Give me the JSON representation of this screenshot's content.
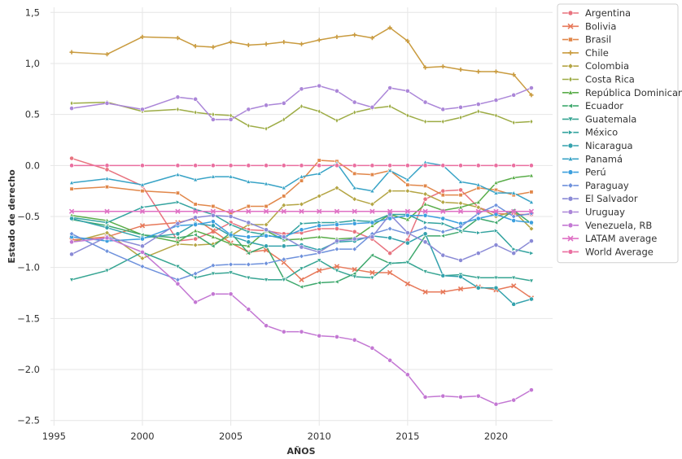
{
  "chart_data": {
    "type": "line",
    "xlabel": "AÑOS",
    "ylabel": "Estado de derecho",
    "xlim": [
      1994.8,
      2023.2
    ],
    "ylim": [
      -2.55,
      1.55
    ],
    "xticks": [
      1995,
      2000,
      2005,
      2010,
      2015,
      2020
    ],
    "yticks": [
      {
        "value": 1.5,
        "label": "1,5"
      },
      {
        "value": 1.0,
        "label": "1,0"
      },
      {
        "value": 0.5,
        "label": "0.5"
      },
      {
        "value": 0.0,
        "label": "0.0"
      },
      {
        "value": -0.5,
        "label": "−0.5"
      },
      {
        "value": -1.0,
        "label": "−1.0"
      },
      {
        "value": -1.5,
        "label": "−1.5"
      },
      {
        "value": -2.0,
        "label": "−2.0"
      },
      {
        "value": -2.5,
        "label": "−2.5"
      }
    ],
    "grid": true,
    "legend_position": "right outside top",
    "years": [
      1996,
      1998,
      2000,
      2002,
      2003,
      2004,
      2005,
      2006,
      2007,
      2008,
      2009,
      2010,
      2011,
      2012,
      2013,
      2014,
      2015,
      2016,
      2017,
      2018,
      2019,
      2020,
      2021,
      2022
    ],
    "series": [
      {
        "name": "Argentina",
        "color": "#e8737f",
        "marker": "circle",
        "values": [
          0.07,
          -0.04,
          -0.2,
          -0.74,
          -0.72,
          -0.65,
          -0.56,
          -0.63,
          -0.64,
          -0.67,
          -0.66,
          -0.62,
          -0.62,
          -0.65,
          -0.72,
          -0.86,
          -0.73,
          -0.33,
          -0.25,
          -0.24,
          -0.41,
          -0.47,
          -0.48,
          -0.48
        ]
      },
      {
        "name": "Bolivia",
        "color": "#e7795a",
        "marker": "x",
        "values": [
          -0.73,
          -0.7,
          -0.59,
          -0.56,
          -0.52,
          -0.64,
          -0.76,
          -0.85,
          -0.83,
          -0.95,
          -1.12,
          -1.03,
          -0.99,
          -1.02,
          -1.05,
          -1.05,
          -1.16,
          -1.24,
          -1.24,
          -1.21,
          -1.19,
          -1.22,
          -1.18,
          -1.3
        ]
      },
      {
        "name": "Brasil",
        "color": "#e1874a",
        "marker": "square",
        "values": [
          -0.23,
          -0.21,
          -0.25,
          -0.27,
          -0.38,
          -0.4,
          -0.47,
          -0.4,
          -0.4,
          -0.3,
          -0.15,
          0.05,
          0.04,
          -0.08,
          -0.09,
          -0.05,
          -0.19,
          -0.2,
          -0.29,
          -0.29,
          -0.22,
          -0.24,
          -0.29,
          -0.26
        ]
      },
      {
        "name": "Chile",
        "color": "#c99b3f",
        "marker": "plus",
        "values": [
          1.11,
          1.09,
          1.26,
          1.25,
          1.17,
          1.16,
          1.21,
          1.18,
          1.19,
          1.21,
          1.19,
          1.23,
          1.26,
          1.28,
          1.25,
          1.35,
          1.22,
          0.96,
          0.97,
          0.94,
          0.92,
          0.92,
          0.89,
          0.69
        ]
      },
      {
        "name": "Colombia",
        "color": "#b4a544",
        "marker": "diamond",
        "values": [
          -0.75,
          -0.66,
          -0.91,
          -0.77,
          -0.78,
          -0.77,
          -0.69,
          -0.58,
          -0.58,
          -0.39,
          -0.38,
          -0.3,
          -0.22,
          -0.33,
          -0.38,
          -0.25,
          -0.25,
          -0.28,
          -0.36,
          -0.37,
          -0.41,
          -0.5,
          -0.45,
          -0.62
        ]
      },
      {
        "name": "Costa Rica",
        "color": "#9dac45",
        "marker": "diamond_thin",
        "values": [
          0.61,
          0.62,
          0.53,
          0.55,
          0.52,
          0.5,
          0.49,
          0.39,
          0.36,
          0.45,
          0.58,
          0.53,
          0.44,
          0.52,
          0.56,
          0.58,
          0.49,
          0.43,
          0.43,
          0.47,
          0.53,
          0.49,
          0.42,
          0.43
        ]
      },
      {
        "name": "República Dominicana",
        "color": "#5aad4a",
        "marker": "triangle_up",
        "values": [
          -0.49,
          -0.54,
          -0.68,
          -0.75,
          -0.64,
          -0.7,
          -0.77,
          -0.79,
          -0.64,
          -0.73,
          -0.72,
          -0.7,
          -0.72,
          -0.71,
          -0.59,
          -0.48,
          -0.53,
          -0.38,
          -0.44,
          -0.41,
          -0.36,
          -0.17,
          -0.12,
          -0.1
        ]
      },
      {
        "name": "Ecuador",
        "color": "#3ea86d",
        "marker": "triangle_left",
        "values": [
          -0.53,
          -0.59,
          -0.68,
          -0.71,
          -0.68,
          -0.79,
          -0.66,
          -0.86,
          -0.79,
          -1.11,
          -1.19,
          -1.15,
          -1.14,
          -1.06,
          -0.88,
          -0.96,
          -0.95,
          -0.69,
          -0.69,
          -0.65,
          -0.52,
          -0.56,
          -0.44,
          -0.57
        ]
      },
      {
        "name": "Guatemala",
        "color": "#37a593",
        "marker": "triangle_down",
        "values": [
          -1.12,
          -1.03,
          -0.85,
          -0.99,
          -1.1,
          -1.06,
          -1.05,
          -1.1,
          -1.12,
          -1.12,
          -1.01,
          -0.93,
          -1.03,
          -1.09,
          -1.1,
          -0.96,
          -0.95,
          -1.04,
          -1.08,
          -1.07,
          -1.1,
          -1.1,
          -1.1,
          -1.13
        ]
      },
      {
        "name": "México",
        "color": "#33a39f",
        "marker": "triangle_right",
        "values": [
          -0.51,
          -0.56,
          -0.41,
          -0.36,
          -0.43,
          -0.48,
          -0.58,
          -0.65,
          -0.68,
          -0.72,
          -0.57,
          -0.56,
          -0.56,
          -0.54,
          -0.55,
          -0.48,
          -0.48,
          -0.56,
          -0.57,
          -0.64,
          -0.66,
          -0.64,
          -0.82,
          -0.86
        ]
      },
      {
        "name": "Nicaragua",
        "color": "#34a2ad",
        "marker": "circle",
        "values": [
          -0.52,
          -0.61,
          -0.71,
          -0.67,
          -0.57,
          -0.59,
          -0.69,
          -0.75,
          -0.79,
          -0.79,
          -0.78,
          -0.83,
          -0.75,
          -0.74,
          -0.69,
          -0.71,
          -0.76,
          -0.67,
          -1.08,
          -1.09,
          -1.2,
          -1.2,
          -1.36,
          -1.31
        ]
      },
      {
        "name": "Panamá",
        "color": "#38a3c6",
        "marker": "triangle_up",
        "values": [
          -0.17,
          -0.13,
          -0.19,
          -0.09,
          -0.14,
          -0.11,
          -0.11,
          -0.16,
          -0.18,
          -0.22,
          -0.11,
          -0.08,
          0.02,
          -0.22,
          -0.25,
          -0.05,
          -0.14,
          0.03,
          0.0,
          -0.16,
          -0.19,
          -0.27,
          -0.27,
          -0.36
        ]
      },
      {
        "name": "Perú",
        "color": "#3c9fde",
        "marker": "circle",
        "values": [
          -0.7,
          -0.74,
          -0.72,
          -0.59,
          -0.58,
          -0.55,
          -0.68,
          -0.7,
          -0.69,
          -0.7,
          -0.63,
          -0.59,
          -0.58,
          -0.57,
          -0.56,
          -0.52,
          -0.49,
          -0.49,
          -0.52,
          -0.57,
          -0.52,
          -0.48,
          -0.54,
          -0.56
        ]
      },
      {
        "name": "Paraguay",
        "color": "#6e91dc",
        "marker": "diamond",
        "values": [
          -0.67,
          -0.84,
          -0.99,
          -1.12,
          -1.06,
          -0.98,
          -0.97,
          -0.97,
          -0.96,
          -0.92,
          -0.89,
          -0.86,
          -0.82,
          -0.82,
          -0.67,
          -0.62,
          -0.67,
          -0.61,
          -0.65,
          -0.6,
          -0.47,
          -0.39,
          -0.5,
          -0.47
        ]
      },
      {
        "name": "El Salvador",
        "color": "#8a8ad6",
        "marker": "circle",
        "values": [
          -0.87,
          -0.7,
          -0.79,
          -0.57,
          -0.51,
          -0.49,
          -0.5,
          -0.56,
          -0.63,
          -0.7,
          -0.8,
          -0.85,
          -0.74,
          -0.72,
          -0.7,
          -0.48,
          -0.66,
          -0.75,
          -0.88,
          -0.93,
          -0.86,
          -0.78,
          -0.86,
          -0.74
        ]
      },
      {
        "name": "Uruguay",
        "color": "#ab86d8",
        "marker": "circle",
        "values": [
          0.56,
          0.61,
          0.55,
          0.67,
          0.65,
          0.45,
          0.45,
          0.55,
          0.59,
          0.61,
          0.75,
          0.78,
          0.73,
          0.62,
          0.57,
          0.76,
          0.73,
          0.62,
          0.55,
          0.57,
          0.6,
          0.64,
          0.69,
          0.76
        ]
      },
      {
        "name": "Venezuela, RB",
        "color": "#c377d3",
        "marker": "circle",
        "values": [
          -0.75,
          -0.71,
          -0.85,
          -1.16,
          -1.34,
          -1.26,
          -1.26,
          -1.41,
          -1.57,
          -1.63,
          -1.63,
          -1.67,
          -1.68,
          -1.71,
          -1.79,
          -1.91,
          -2.05,
          -2.27,
          -2.26,
          -2.27,
          -2.26,
          -2.34,
          -2.3,
          -2.2
        ]
      },
      {
        "name": "LATAM average",
        "color": "#df70c4",
        "marker": "x",
        "values": [
          -0.45,
          -0.45,
          -0.45,
          -0.45,
          -0.45,
          -0.45,
          -0.45,
          -0.45,
          -0.45,
          -0.45,
          -0.45,
          -0.45,
          -0.45,
          -0.45,
          -0.45,
          -0.45,
          -0.45,
          -0.45,
          -0.45,
          -0.45,
          -0.45,
          -0.45,
          -0.45,
          -0.45
        ]
      },
      {
        "name": "World Average",
        "color": "#ea6fa0",
        "marker": "circle",
        "values": [
          0.0,
          0.0,
          0.0,
          0.0,
          0.0,
          0.0,
          0.0,
          0.0,
          0.0,
          0.0,
          0.0,
          0.0,
          0.0,
          0.0,
          0.0,
          0.0,
          0.0,
          0.0,
          0.0,
          0.0,
          0.0,
          0.0,
          0.0,
          0.0
        ]
      }
    ]
  }
}
